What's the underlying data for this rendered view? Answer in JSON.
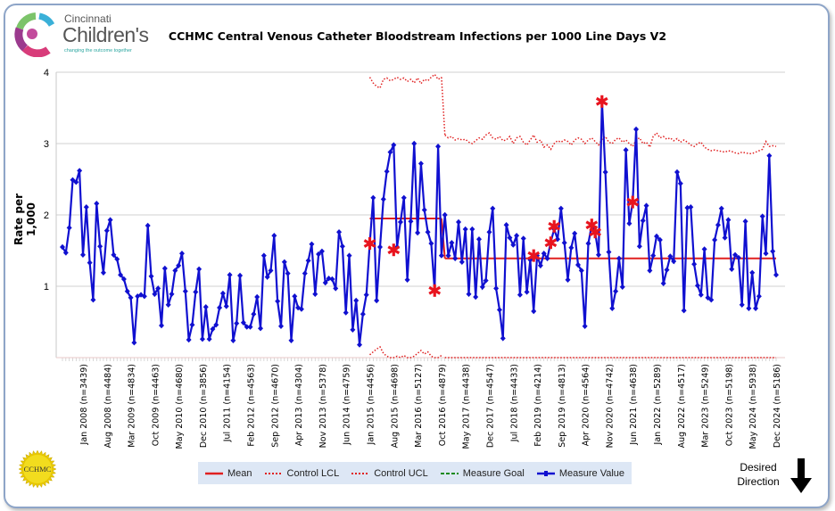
{
  "header": {
    "logo": {
      "line1": "Cincinnati",
      "line2": "Children's",
      "tagline": "changing the outcome together"
    },
    "title": "CCHMC Central Venous Catheter  Bloodstream Infections per 1000 Line Days V2"
  },
  "footer": {
    "seal_text": "CCHMC",
    "desired_direction": "Desired Direction",
    "desired_direction_arrow": "down",
    "legend": [
      {
        "label": "Mean",
        "color": "#e02020",
        "style": "solid"
      },
      {
        "label": "Control LCL",
        "color": "#e02020",
        "style": "dotted"
      },
      {
        "label": "Control UCL",
        "color": "#e02020",
        "style": "dotted"
      },
      {
        "label": "Measure Goal",
        "color": "#1a8a1a",
        "style": "dashed"
      },
      {
        "label": "Measure Value",
        "color": "#1010d0",
        "style": "solid-marker"
      }
    ]
  },
  "chart_data": {
    "type": "line",
    "title": "CCHMC Central Venous Catheter  Bloodstream Infections per 1000 Line Days V2",
    "ylabel": "Rate per 1,000",
    "xlabel": "",
    "ylim": [
      0,
      4
    ],
    "yticks": [
      1,
      2,
      3,
      4
    ],
    "grid": true,
    "legend_position": "bottom",
    "x_tick_labels": [
      "Jan 2008 (n=3439)",
      "Aug 2008 (n=4484)",
      "Mar 2009 (n=4834)",
      "Oct 2009 (n=4463)",
      "May 2010 (n=4680)",
      "Dec 2010 (n=3856)",
      "Jul 2011 (n=4154)",
      "Feb 2012 (n=4563)",
      "Sep 2012 (n=4670)",
      "Apr 2013 (n=4304)",
      "Nov 2013 (n=5378)",
      "Jun 2014 (n=4759)",
      "Jan 2015 (n=4456)",
      "Aug 2015 (n=4698)",
      "Mar 2016 (n=5127)",
      "Oct 2016 (n=4879)",
      "May 2017 (n=4438)",
      "Dec 2017 (n=4547)",
      "Jul 2018 (n=4433)",
      "Feb 2019 (n=4214)",
      "Sep 2019 (n=4813)",
      "Apr 2020 (n=4564)",
      "Nov 2020 (n=4742)",
      "Jun 2021 (n=4638)",
      "Jan 2022 (n=5289)",
      "Aug 2022 (n=4517)",
      "Mar 2023 (n=5249)",
      "Oct 2023 (n=5198)",
      "May 2024 (n=5938)",
      "Dec 2024 (n=5186)"
    ],
    "x_range": [
      "2007-07",
      "2024-12"
    ],
    "series": [
      {
        "name": "Measure Value",
        "color": "#1010d0",
        "values": [
          1.55,
          1.47,
          1.82,
          2.49,
          2.46,
          2.62,
          1.44,
          2.11,
          1.33,
          0.81,
          2.16,
          1.56,
          1.19,
          1.78,
          1.93,
          1.44,
          1.38,
          1.16,
          1.1,
          0.93,
          0.84,
          0.21,
          0.86,
          0.88,
          0.86,
          1.85,
          1.14,
          0.89,
          0.97,
          0.45,
          1.25,
          0.74,
          0.89,
          1.22,
          1.29,
          1.46,
          0.93,
          0.25,
          0.46,
          0.92,
          1.24,
          0.26,
          0.71,
          0.26,
          0.4,
          0.46,
          0.7,
          0.9,
          0.72,
          1.16,
          0.24,
          0.48,
          1.15,
          0.49,
          0.43,
          0.43,
          0.61,
          0.85,
          0.41,
          1.43,
          1.13,
          1.22,
          1.71,
          0.79,
          0.44,
          1.34,
          1.18,
          0.24,
          0.86,
          0.7,
          0.68,
          1.18,
          1.36,
          1.59,
          0.89,
          1.45,
          1.49,
          1.05,
          1.11,
          1.1,
          0.97,
          1.76,
          1.56,
          0.63,
          1.43,
          0.39,
          0.8,
          0.18,
          0.61,
          0.88,
          1.6,
          2.24,
          0.8,
          1.55,
          2.22,
          2.61,
          2.88,
          2.98,
          1.55,
          1.9,
          2.24,
          1.09,
          1.91,
          3.0,
          1.75,
          2.72,
          2.07,
          1.76,
          1.6,
          0.95,
          2.96,
          1.43,
          2.0,
          1.43,
          1.61,
          1.39,
          1.9,
          1.34,
          1.8,
          0.89,
          1.8,
          0.85,
          1.66,
          0.99,
          1.08,
          1.76,
          2.09,
          0.97,
          0.67,
          0.27,
          1.86,
          1.68,
          1.58,
          1.71,
          0.88,
          1.67,
          0.92,
          1.37,
          0.65,
          1.43,
          1.29,
          1.46,
          1.39,
          1.62,
          1.8,
          1.66,
          2.09,
          1.61,
          1.09,
          1.54,
          1.74,
          1.3,
          1.22,
          0.44,
          1.6,
          1.86,
          1.76,
          1.44,
          3.59,
          2.6,
          1.48,
          0.69,
          0.93,
          1.39,
          0.99,
          2.91,
          1.88,
          2.18,
          3.2,
          1.56,
          1.92,
          2.13,
          1.22,
          1.43,
          1.7,
          1.65,
          1.04,
          1.23,
          1.42,
          1.35,
          2.6,
          2.44,
          0.66,
          2.1,
          2.11,
          1.31,
          1.01,
          0.88,
          1.52,
          0.84,
          0.81,
          1.65,
          1.86,
          2.09,
          1.68,
          1.93,
          1.24,
          1.44,
          1.4,
          0.74,
          1.91,
          0.69,
          1.19,
          0.69,
          0.86,
          1.98,
          1.46,
          2.83,
          1.49,
          1.16
        ]
      }
    ],
    "phases": [
      {
        "start": "2015-01",
        "end": "2016-10",
        "mean": 1.95,
        "ucl": [
          3.93,
          3.85,
          3.8,
          3.78,
          3.9,
          3.92,
          3.88,
          3.9,
          3.93,
          3.9,
          3.92,
          3.87,
          3.9,
          3.85,
          3.92,
          3.84,
          3.9,
          3.88,
          3.93,
          3.97,
          3.9,
          3.93
        ],
        "lcl": [
          0.04,
          0.08,
          0.12,
          0.15,
          0.06,
          0.02,
          0,
          0,
          0.02,
          0,
          0.03,
          0,
          0,
          0.02,
          0.06,
          0.1,
          0.05,
          0.08,
          0.02,
          0,
          0,
          0.03
        ]
      },
      {
        "start": "2016-11",
        "end": "2024-12",
        "mean": 1.39,
        "ucl": [
          3.12,
          3.08,
          3.1,
          3.05,
          3.07,
          3.05,
          3.06,
          3.02,
          3.0,
          3.04,
          3.08,
          3.06,
          3.12,
          3.15,
          3.08,
          3.06,
          3.1,
          3.04,
          3.05,
          3.1,
          3.0,
          3.08,
          3.1,
          3.02,
          2.98,
          3.05,
          3.12,
          3.02,
          3.05,
          2.95,
          2.98,
          2.92,
          3.0,
          3.04,
          3.02,
          3.05,
          3.03,
          2.98,
          3.05,
          3.08,
          3.06,
          3.0,
          3.05,
          3.08,
          3.03,
          2.98,
          3.06,
          3.1,
          3.02,
          3.0,
          3.06,
          3.08,
          3.02,
          3.05,
          3.0,
          2.96,
          3.05,
          3.08,
          3.0,
          3.02,
          2.95,
          3.1,
          3.15,
          3.08,
          3.1,
          3.06,
          3.08,
          3.04,
          3.07,
          3.02,
          3.05,
          3.02,
          2.98,
          2.96,
          3.0,
          3.02,
          2.95,
          2.92,
          2.9,
          2.91,
          2.9,
          2.89,
          2.88,
          2.9,
          2.89,
          2.87,
          2.86,
          2.88,
          2.87,
          2.86,
          2.86,
          2.88,
          2.9,
          2.92,
          3.03,
          2.96,
          2.97,
          2.96
        ],
        "lcl": 0
      }
    ],
    "special_cause_points": [
      {
        "x": "2015-01",
        "y": 1.6
      },
      {
        "x": "2015-08",
        "y": 1.51
      },
      {
        "x": "2016-08",
        "y": 0.94
      },
      {
        "x": "2019-01",
        "y": 1.43
      },
      {
        "x": "2019-06",
        "y": 1.61
      },
      {
        "x": "2019-07",
        "y": 1.84
      },
      {
        "x": "2020-06",
        "y": 1.86
      },
      {
        "x": "2020-07",
        "y": 1.76
      },
      {
        "x": "2020-09",
        "y": 3.59
      },
      {
        "x": "2021-06",
        "y": 2.18
      }
    ]
  }
}
